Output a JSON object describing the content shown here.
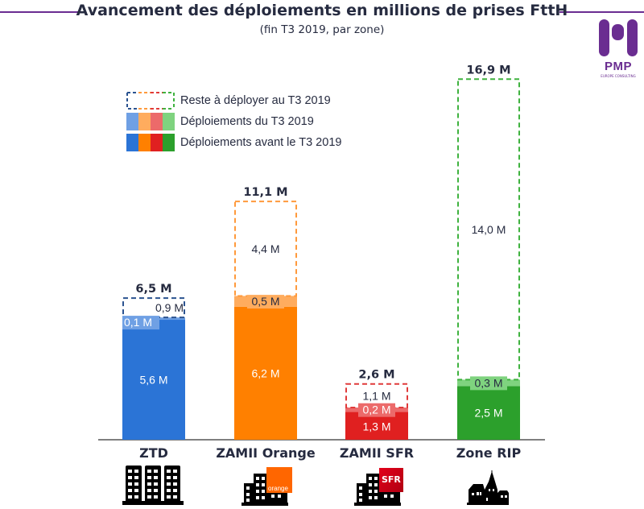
{
  "header": {
    "title": "Avancement des déploiements en millions de prises FttH",
    "subtitle": "(fin T3 2019, par zone)",
    "accent_color": "#6a2d91"
  },
  "logo": {
    "text": "PMP",
    "subtext": "EUROPE CONSULTING"
  },
  "legend": {
    "items": [
      {
        "label": "Reste à déployer au T3 2019",
        "style": "dashed"
      },
      {
        "label": "Déploiements du T3 2019",
        "style": "light"
      },
      {
        "label": "Déploiements avant le T3 2019",
        "style": "solid"
      }
    ]
  },
  "chart_data": {
    "type": "bar",
    "stacked": true,
    "title": "Avancement des déploiements en millions de prises FttH",
    "subtitle": "(fin T3 2019, par zone)",
    "xlabel": "",
    "ylabel": "",
    "unit": "M",
    "ylim": [
      0,
      16.9
    ],
    "grid": false,
    "legend_position": "top-left",
    "categories": [
      "ZTD",
      "ZAMII Orange",
      "ZAMII SFR",
      "Zone RIP"
    ],
    "series": [
      {
        "name": "Déploiements avant le T3 2019",
        "values": [
          5.6,
          6.2,
          1.3,
          2.5
        ],
        "labels": [
          "5,6 M",
          "6,2 M",
          "1,3 M",
          "2,5 M"
        ]
      },
      {
        "name": "Déploiements du T3 2019",
        "values": [
          0.1,
          0.5,
          0.2,
          0.3
        ],
        "labels": [
          "0,1 M",
          "0,5 M",
          "0,2 M",
          "0,3 M"
        ]
      },
      {
        "name": "Reste à déployer au T3 2019",
        "values": [
          0.9,
          4.4,
          1.1,
          14.0
        ],
        "labels": [
          "0,9 M",
          "4,4 M",
          "1,1 M",
          "14,0 M"
        ]
      }
    ],
    "totals": [
      6.5,
      11.1,
      2.6,
      16.9
    ],
    "total_labels": [
      "6,5 M",
      "11,1 M",
      "2,6 M",
      "16,9 M"
    ],
    "colors": {
      "solid": [
        "#2b74d6",
        "#ff8000",
        "#e02020",
        "#2ca02c"
      ],
      "light": [
        "#6fa0e4",
        "#ffac5e",
        "#ec6a6a",
        "#7fd37f"
      ],
      "dashed": [
        "#2b5390",
        "#ff9a3c",
        "#e03a3a",
        "#3fb23f"
      ]
    }
  },
  "zone_icons": [
    {
      "name": "city-buildings-icon"
    },
    {
      "name": "orange-buildings-icon",
      "brand": "orange",
      "brand_color": "#ff6600"
    },
    {
      "name": "sfr-buildings-icon",
      "brand": "SFR",
      "brand_color": "#e2001a"
    },
    {
      "name": "village-church-icon"
    }
  ]
}
